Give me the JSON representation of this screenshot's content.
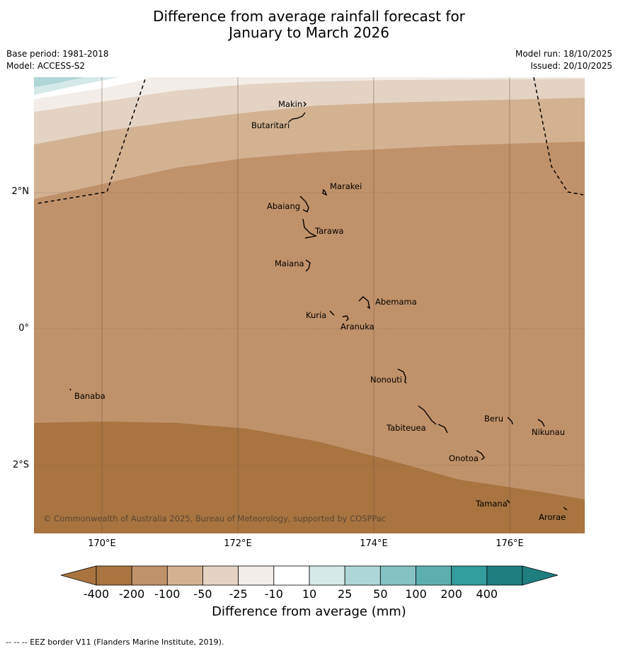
{
  "title": {
    "line1": "Difference from average rainfall forecast for",
    "line2": "January to March 2026"
  },
  "meta": {
    "base_period": "Base period: 1981-2018",
    "model": "Model: ACCESS-S2",
    "model_run": "Model run: 18/10/2025",
    "issued": "Issued: 20/10/2025"
  },
  "axes": {
    "lat_labels": [
      "2°N",
      "0°",
      "2°S"
    ],
    "lon_labels": [
      "170°E",
      "172°E",
      "174°E",
      "176°E"
    ]
  },
  "islands": [
    {
      "name": "Makin"
    },
    {
      "name": "Butaritari"
    },
    {
      "name": "Marakei"
    },
    {
      "name": "Abaiang"
    },
    {
      "name": "Tarawa"
    },
    {
      "name": "Maiana"
    },
    {
      "name": "Abemama"
    },
    {
      "name": "Kuria"
    },
    {
      "name": "Aranuka"
    },
    {
      "name": "Nonouti"
    },
    {
      "name": "Banaba"
    },
    {
      "name": "Tabiteuea"
    },
    {
      "name": "Beru"
    },
    {
      "name": "Nikunau"
    },
    {
      "name": "Onotoa"
    },
    {
      "name": "Tamana"
    },
    {
      "name": "Arorae"
    }
  ],
  "copyright": "© Commonwealth of Australia 2025, Bureau of Meteorology, supported by COSPPac",
  "colorbar": {
    "ticks": [
      "-400",
      "-200",
      "-100",
      "-50",
      "-25",
      "-10",
      "10",
      "25",
      "50",
      "100",
      "200",
      "400"
    ],
    "colors": [
      "#a97440",
      "#c0926a",
      "#d3b292",
      "#e4d3c3",
      "#f2ede8",
      "#ffffff",
      "#d6e9e9",
      "#aed6d6",
      "#85c2c2",
      "#5dafaf",
      "#339c9c",
      "#1e7e80"
    ],
    "caption": "Difference from average (mm)"
  },
  "footnote": "--  --  -- EEZ border V11 (Flanders Marine Institute, 2019)."
}
